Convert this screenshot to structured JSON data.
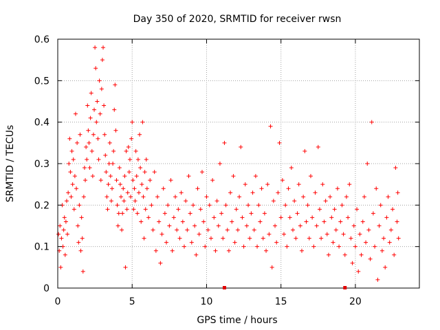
{
  "chart_data": {
    "type": "scatter",
    "title": "Day 350 of 2020, SRMTID for receiver rwsn",
    "xlabel": "GPS time / hours",
    "ylabel": "SRMTID / TECUs",
    "xlim": [
      0,
      24.3
    ],
    "ylim": [
      0,
      0.6
    ],
    "xticks": [
      0,
      5,
      10,
      15,
      20
    ],
    "xtick_labels": [
      "0",
      "5",
      "10",
      "15",
      "20"
    ],
    "yticks": [
      0,
      0.1,
      0.2,
      0.3,
      0.4,
      0.5,
      0.6
    ],
    "ytick_labels": [
      "0",
      "0.1",
      "0.2",
      "0.3",
      "0.4",
      "0.5",
      "0.6"
    ],
    "grid": true,
    "marker": "+",
    "color": "#ff0000",
    "series": [
      {
        "name": "SRMTID",
        "points": [
          [
            0.05,
            0.13
          ],
          [
            0.1,
            0.09
          ],
          [
            0.15,
            0.15
          ],
          [
            0.2,
            0.05
          ],
          [
            0.25,
            0.12
          ],
          [
            0.3,
            0.2
          ],
          [
            0.35,
            0.1
          ],
          [
            0.4,
            0.14
          ],
          [
            0.45,
            0.17
          ],
          [
            0.5,
            0.08
          ],
          [
            0.55,
            0.16
          ],
          [
            0.6,
            0.21
          ],
          [
            0.65,
            0.13
          ],
          [
            0.7,
            0.23
          ],
          [
            0.75,
            0.3
          ],
          [
            0.8,
            0.36
          ],
          [
            0.85,
            0.28
          ],
          [
            0.9,
            0.22
          ],
          [
            0.95,
            0.33
          ],
          [
            1.0,
            0.25
          ],
          [
            1.05,
            0.31
          ],
          [
            1.1,
            0.19
          ],
          [
            1.15,
            0.27
          ],
          [
            1.2,
            0.42
          ],
          [
            1.25,
            0.24
          ],
          [
            1.3,
            0.35
          ],
          [
            1.35,
            0.15
          ],
          [
            1.4,
            0.11
          ],
          [
            1.45,
            0.2
          ],
          [
            1.5,
            0.37
          ],
          [
            1.55,
            0.09
          ],
          [
            1.6,
            0.17
          ],
          [
            1.65,
            0.12
          ],
          [
            1.7,
            0.04
          ],
          [
            1.75,
            0.22
          ],
          [
            1.8,
            0.29
          ],
          [
            1.85,
            0.26
          ],
          [
            1.9,
            0.34
          ],
          [
            1.95,
            0.31
          ],
          [
            2.0,
            0.44
          ],
          [
            2.05,
            0.38
          ],
          [
            2.1,
            0.35
          ],
          [
            2.15,
            0.29
          ],
          [
            2.2,
            0.41
          ],
          [
            2.25,
            0.47
          ],
          [
            2.3,
            0.33
          ],
          [
            2.35,
            0.27
          ],
          [
            2.4,
            0.37
          ],
          [
            2.45,
            0.43
          ],
          [
            2.5,
            0.58
          ],
          [
            2.55,
            0.53
          ],
          [
            2.6,
            0.4
          ],
          [
            2.65,
            0.45
          ],
          [
            2.7,
            0.36
          ],
          [
            2.75,
            0.31
          ],
          [
            2.8,
            0.5
          ],
          [
            2.85,
            0.42
          ],
          [
            2.9,
            0.26
          ],
          [
            2.95,
            0.48
          ],
          [
            3.0,
            0.55
          ],
          [
            3.05,
            0.58
          ],
          [
            3.1,
            0.44
          ],
          [
            3.15,
            0.37
          ],
          [
            3.2,
            0.32
          ],
          [
            3.25,
            0.28
          ],
          [
            3.3,
            0.22
          ],
          [
            3.35,
            0.19
          ],
          [
            3.4,
            0.25
          ],
          [
            3.45,
            0.3
          ],
          [
            3.5,
            0.35
          ],
          [
            3.55,
            0.27
          ],
          [
            3.6,
            0.21
          ],
          [
            3.65,
            0.24
          ],
          [
            3.7,
            0.3
          ],
          [
            3.75,
            0.33
          ],
          [
            3.8,
            0.43
          ],
          [
            3.85,
            0.49
          ],
          [
            3.9,
            0.38
          ],
          [
            3.95,
            0.26
          ],
          [
            4.0,
            0.2
          ],
          [
            4.05,
            0.15
          ],
          [
            4.1,
            0.18
          ],
          [
            4.15,
            0.29
          ],
          [
            4.2,
            0.25
          ],
          [
            4.25,
            0.22
          ],
          [
            4.3,
            0.14
          ],
          [
            4.35,
            0.18
          ],
          [
            4.4,
            0.24
          ],
          [
            4.45,
            0.21
          ],
          [
            4.5,
            0.27
          ],
          [
            4.55,
            0.05
          ],
          [
            4.6,
            0.33
          ],
          [
            4.65,
            0.19
          ],
          [
            4.7,
            0.23
          ],
          [
            4.75,
            0.34
          ],
          [
            4.8,
            0.28
          ],
          [
            4.85,
            0.31
          ],
          [
            4.9,
            0.22
          ],
          [
            4.95,
            0.36
          ],
          [
            5.0,
            0.4
          ],
          [
            5.05,
            0.26
          ],
          [
            5.1,
            0.19
          ],
          [
            5.15,
            0.24
          ],
          [
            5.2,
            0.21
          ],
          [
            5.25,
            0.33
          ],
          [
            5.3,
            0.27
          ],
          [
            5.35,
            0.18
          ],
          [
            5.4,
            0.31
          ],
          [
            5.45,
            0.23
          ],
          [
            5.5,
            0.37
          ],
          [
            5.55,
            0.29
          ],
          [
            5.6,
            0.16
          ],
          [
            5.65,
            0.25
          ],
          [
            5.7,
            0.4
          ],
          [
            5.75,
            0.22
          ],
          [
            5.8,
            0.12
          ],
          [
            5.85,
            0.28
          ],
          [
            5.9,
            0.19
          ],
          [
            5.95,
            0.31
          ],
          [
            6.0,
            0.24
          ],
          [
            6.1,
            0.17
          ],
          [
            6.2,
            0.26
          ],
          [
            6.3,
            0.2
          ],
          [
            6.4,
            0.14
          ],
          [
            6.5,
            0.28
          ],
          [
            6.6,
            0.09
          ],
          [
            6.7,
            0.22
          ],
          [
            6.8,
            0.16
          ],
          [
            6.9,
            0.06
          ],
          [
            7.0,
            0.13
          ],
          [
            7.1,
            0.24
          ],
          [
            7.2,
            0.18
          ],
          [
            7.3,
            0.11
          ],
          [
            7.4,
            0.2
          ],
          [
            7.5,
            0.15
          ],
          [
            7.6,
            0.26
          ],
          [
            7.7,
            0.09
          ],
          [
            7.8,
            0.17
          ],
          [
            7.9,
            0.22
          ],
          [
            8.0,
            0.14
          ],
          [
            8.1,
            0.19
          ],
          [
            8.2,
            0.12
          ],
          [
            8.3,
            0.23
          ],
          [
            8.4,
            0.16
          ],
          [
            8.5,
            0.1
          ],
          [
            8.6,
            0.21
          ],
          [
            8.7,
            0.14
          ],
          [
            8.8,
            0.27
          ],
          [
            8.9,
            0.18
          ],
          [
            9.0,
            0.11
          ],
          [
            9.1,
            0.2
          ],
          [
            9.2,
            0.15
          ],
          [
            9.3,
            0.08
          ],
          [
            9.4,
            0.24
          ],
          [
            9.5,
            0.13
          ],
          [
            9.6,
            0.19
          ],
          [
            9.7,
            0.28
          ],
          [
            9.8,
            0.16
          ],
          [
            9.9,
            0.1
          ],
          [
            10.0,
            0.22
          ],
          [
            10.1,
            0.14
          ],
          [
            10.2,
            0.2
          ],
          [
            10.3,
            0.12
          ],
          [
            10.4,
            0.26
          ],
          [
            10.5,
            0.17
          ],
          [
            10.6,
            0.09
          ],
          [
            10.7,
            0.21
          ],
          [
            10.8,
            0.15
          ],
          [
            10.9,
            0.3
          ],
          [
            11.0,
            0.18
          ],
          [
            11.1,
            0.12
          ],
          [
            11.2,
            0.35
          ],
          [
            11.3,
            0.2
          ],
          [
            11.4,
            0.14
          ],
          [
            11.5,
            0.09
          ],
          [
            11.6,
            0.23
          ],
          [
            11.7,
            0.16
          ],
          [
            11.8,
            0.27
          ],
          [
            11.9,
            0.11
          ],
          [
            12.0,
            0.19
          ],
          [
            12.1,
            0.14
          ],
          [
            12.2,
            0.22
          ],
          [
            12.3,
            0.34
          ],
          [
            12.4,
            0.17
          ],
          [
            12.5,
            0.1
          ],
          [
            12.6,
            0.25
          ],
          [
            12.7,
            0.15
          ],
          [
            12.8,
            0.2
          ],
          [
            12.9,
            0.12
          ],
          [
            13.0,
            0.18
          ],
          [
            13.1,
            0.23
          ],
          [
            13.2,
            0.14
          ],
          [
            13.3,
            0.27
          ],
          [
            13.4,
            0.1
          ],
          [
            13.5,
            0.2
          ],
          [
            13.6,
            0.16
          ],
          [
            13.7,
            0.24
          ],
          [
            13.8,
            0.12
          ],
          [
            13.9,
            0.18
          ],
          [
            14.0,
            0.09
          ],
          [
            14.1,
            0.25
          ],
          [
            14.2,
            0.13
          ],
          [
            14.3,
            0.39
          ],
          [
            14.4,
            0.05
          ],
          [
            14.5,
            0.21
          ],
          [
            14.6,
            0.15
          ],
          [
            14.7,
            0.11
          ],
          [
            14.8,
            0.23
          ],
          [
            14.9,
            0.35
          ],
          [
            15.0,
            0.17
          ],
          [
            15.1,
            0.26
          ],
          [
            15.2,
            0.13
          ],
          [
            15.3,
            0.2
          ],
          [
            15.4,
            0.1
          ],
          [
            15.5,
            0.24
          ],
          [
            15.6,
            0.17
          ],
          [
            15.7,
            0.29
          ],
          [
            15.8,
            0.14
          ],
          [
            15.9,
            0.21
          ],
          [
            16.0,
            0.12
          ],
          [
            16.1,
            0.18
          ],
          [
            16.2,
            0.25
          ],
          [
            16.3,
            0.15
          ],
          [
            16.4,
            0.09
          ],
          [
            16.5,
            0.22
          ],
          [
            16.6,
            0.33
          ],
          [
            16.7,
            0.16
          ],
          [
            16.8,
            0.2
          ],
          [
            16.9,
            0.12
          ],
          [
            17.0,
            0.27
          ],
          [
            17.1,
            0.17
          ],
          [
            17.2,
            0.1
          ],
          [
            17.3,
            0.23
          ],
          [
            17.4,
            0.15
          ],
          [
            17.5,
            0.34
          ],
          [
            17.6,
            0.19
          ],
          [
            17.7,
            0.12
          ],
          [
            17.8,
            0.25
          ],
          [
            17.9,
            0.16
          ],
          [
            18.0,
            0.21
          ],
          [
            18.1,
            0.13
          ],
          [
            18.2,
            0.08
          ],
          [
            18.3,
            0.22
          ],
          [
            18.4,
            0.17
          ],
          [
            18.5,
            0.11
          ],
          [
            18.6,
            0.19
          ],
          [
            18.7,
            0.14
          ],
          [
            18.8,
            0.24
          ],
          [
            18.9,
            0.1
          ],
          [
            19.0,
            0.16
          ],
          [
            19.1,
            0.2
          ],
          [
            19.2,
            0.13
          ],
          [
            19.3,
            0.08
          ],
          [
            19.4,
            0.22
          ],
          [
            19.5,
            0.17
          ],
          [
            19.6,
            0.25
          ],
          [
            19.7,
            0.12
          ],
          [
            19.8,
            0.06
          ],
          [
            19.9,
            0.15
          ],
          [
            20.0,
            0.1
          ],
          [
            20.1,
            0.19
          ],
          [
            20.2,
            0.04
          ],
          [
            20.3,
            0.13
          ],
          [
            20.4,
            0.08
          ],
          [
            20.5,
            0.16
          ],
          [
            20.6,
            0.22
          ],
          [
            20.7,
            0.11
          ],
          [
            20.8,
            0.3
          ],
          [
            20.9,
            0.14
          ],
          [
            21.0,
            0.07
          ],
          [
            21.1,
            0.4
          ],
          [
            21.2,
            0.18
          ],
          [
            21.3,
            0.1
          ],
          [
            21.4,
            0.24
          ],
          [
            21.5,
            0.02
          ],
          [
            21.6,
            0.15
          ],
          [
            21.7,
            0.2
          ],
          [
            21.8,
            0.09
          ],
          [
            21.9,
            0.12
          ],
          [
            22.0,
            0.05
          ],
          [
            22.1,
            0.17
          ],
          [
            22.2,
            0.22
          ],
          [
            22.3,
            0.11
          ],
          [
            22.4,
            0.14
          ],
          [
            22.5,
            0.19
          ],
          [
            22.6,
            0.08
          ],
          [
            22.7,
            0.29
          ],
          [
            22.8,
            0.16
          ],
          [
            22.85,
            0.23
          ],
          [
            22.9,
            0.12
          ]
        ]
      }
    ],
    "axis_markers_x": [
      11.2,
      19.3
    ]
  }
}
